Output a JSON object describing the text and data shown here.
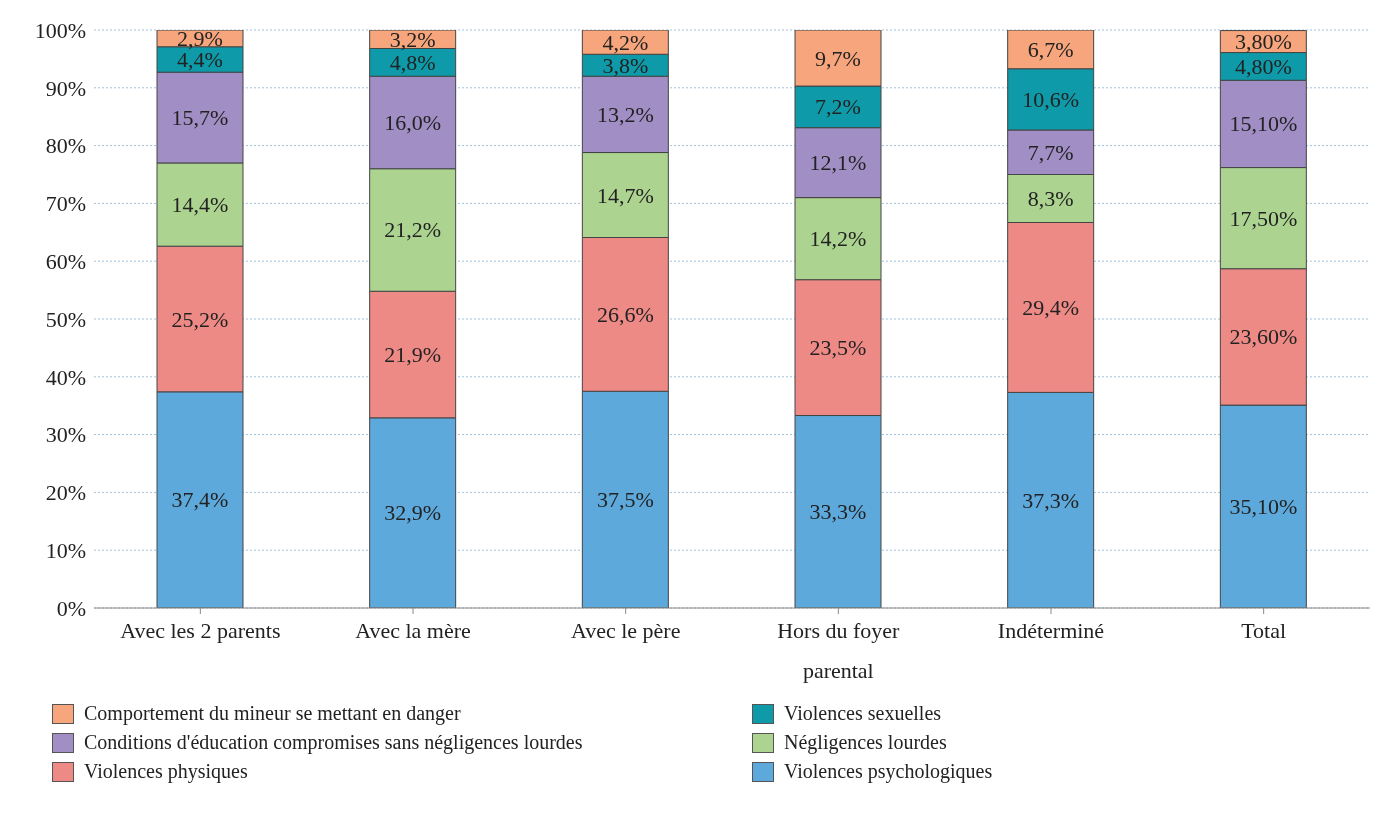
{
  "chart_data": {
    "type": "bar",
    "stacked": true,
    "categories": [
      "Avec les 2 parents",
      "Avec la mère",
      "Avec le père",
      "Hors du foyer parental",
      "Indéterminé",
      "Total"
    ],
    "ylim": [
      0,
      100
    ],
    "yticks": [
      {
        "value": 0,
        "label": "0%"
      },
      {
        "value": 10,
        "label": "10%"
      },
      {
        "value": 20,
        "label": "20%"
      },
      {
        "value": 30,
        "label": "30%"
      },
      {
        "value": 40,
        "label": "40%"
      },
      {
        "value": 50,
        "label": "50%"
      },
      {
        "value": 60,
        "label": "60%"
      },
      {
        "value": 70,
        "label": "70%"
      },
      {
        "value": 80,
        "label": "80%"
      },
      {
        "value": 90,
        "label": "90%"
      },
      {
        "value": 100,
        "label": "100%"
      }
    ],
    "grid": "y",
    "legend": "bottom",
    "series": [
      {
        "name": "Violences psychologiques",
        "color": "#5ea9dc",
        "values": [
          37.4,
          32.9,
          37.5,
          33.3,
          37.3,
          35.1
        ],
        "value_labels": [
          "37,4%",
          "32,9%",
          "37,5%",
          "33,3%",
          "37,3%",
          "35,10%"
        ]
      },
      {
        "name": "Violences physiques",
        "color": "#ee8a86",
        "values": [
          25.2,
          21.9,
          26.6,
          23.5,
          29.4,
          23.6
        ],
        "value_labels": [
          "25,2%",
          "21,9%",
          "26,6%",
          "23,5%",
          "29,4%",
          "23,60%"
        ]
      },
      {
        "name": "Négligences lourdes",
        "color": "#acd490",
        "values": [
          14.4,
          21.2,
          14.7,
          14.2,
          8.3,
          17.5
        ],
        "value_labels": [
          "14,4%",
          "21,2%",
          "14,7%",
          "14,2%",
          "8,3%",
          "17,50%"
        ]
      },
      {
        "name": "Conditions d'éducation compromises sans négligences lourdes",
        "color": "#a08ec4",
        "values": [
          15.7,
          16.0,
          13.2,
          12.1,
          7.7,
          15.1
        ],
        "value_labels": [
          "15,7%",
          "16,0%",
          "13,2%",
          "12,1%",
          "7,7%",
          "15,10%"
        ]
      },
      {
        "name": "Violences sexuelles",
        "color": "#0e9aa8",
        "values": [
          4.4,
          4.8,
          3.8,
          7.2,
          10.6,
          4.8
        ],
        "value_labels": [
          "4,4%",
          "4,8%",
          "3,8%",
          "7,2%",
          "10,6%",
          "4,80%"
        ]
      },
      {
        "name": "Comportement du mineur se mettant en danger",
        "color": "#f6a57c",
        "values": [
          2.9,
          3.2,
          4.2,
          9.7,
          6.7,
          3.8
        ],
        "value_labels": [
          "2,9%",
          "3,2%",
          "4,2%",
          "9,7%",
          "6,7%",
          "3,80%"
        ]
      }
    ]
  }
}
